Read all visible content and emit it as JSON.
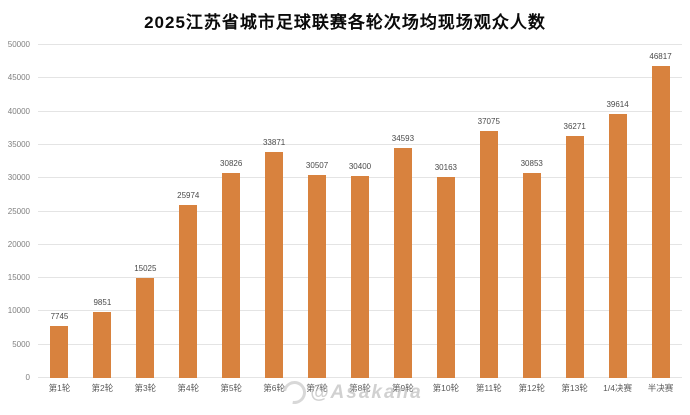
{
  "title": "2025江苏省城市足球联赛各轮次场均现场观众人数",
  "watermark": {
    "text": "@Asakana",
    "icon": "weibo-swirl-icon"
  },
  "chart_data": {
    "type": "bar",
    "title": "2025江苏省城市足球联赛各轮次场均现场观众人数",
    "categories": [
      "第1轮",
      "第2轮",
      "第3轮",
      "第4轮",
      "第5轮",
      "第6轮",
      "第7轮",
      "第8轮",
      "第9轮",
      "第10轮",
      "第11轮",
      "第12轮",
      "第13轮",
      "1/4决赛",
      "半决赛"
    ],
    "values": [
      7745,
      9851,
      15025,
      25974,
      30826,
      33871,
      30507,
      30400,
      34593,
      30163,
      37075,
      30853,
      36271,
      39614,
      46817
    ],
    "xlabel": "",
    "ylabel": "",
    "ylim": [
      0,
      50000
    ],
    "ytick_step": 5000,
    "bar_color": "#d8823e",
    "grid": true,
    "gridline_color": "#e4e4e4",
    "value_labels": true,
    "legend": "none"
  }
}
